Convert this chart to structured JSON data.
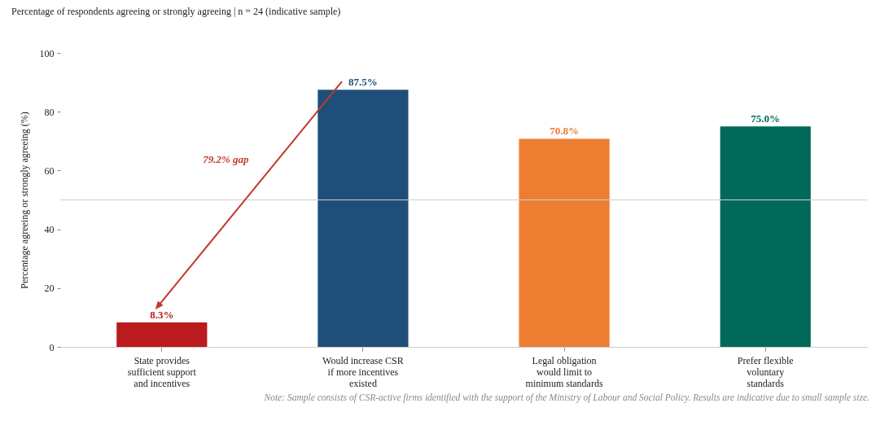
{
  "chart_data": {
    "type": "bar",
    "title": "Percentage of respondents agreeing or strongly agreeing | n = 24 (indicative sample)",
    "ylabel": "Percentage agreeing or strongly agreeing (%)",
    "categories": [
      "State provides\nsufficient support\nand incentives",
      "Would increase CSR\nif more incentives\nexisted",
      "Legal obligation\nwould limit to\nminimum standards",
      "Prefer flexible\nvoluntary\nstandards"
    ],
    "values": [
      8.3,
      87.5,
      70.8,
      75.0
    ],
    "colors": [
      "#bb1a1e",
      "#1f4e7a",
      "#ec7d31",
      "#00695a"
    ],
    "value_labels": [
      "8.3%",
      "87.5%",
      "70.8%",
      "75.0%"
    ],
    "ylim": [
      0,
      100
    ],
    "yticks": [
      0,
      20,
      40,
      60,
      80,
      100
    ],
    "grid": false,
    "ref_lines": [
      {
        "axis": "y",
        "value": 50,
        "color": "#cfcfcf"
      }
    ],
    "annotations": [
      "79.2% gap",
      "Note: Sample consists of CSR-active firms identified with the support of the Ministry of Labour and Social Policy. Results are indicative due to small sample size."
    ]
  }
}
